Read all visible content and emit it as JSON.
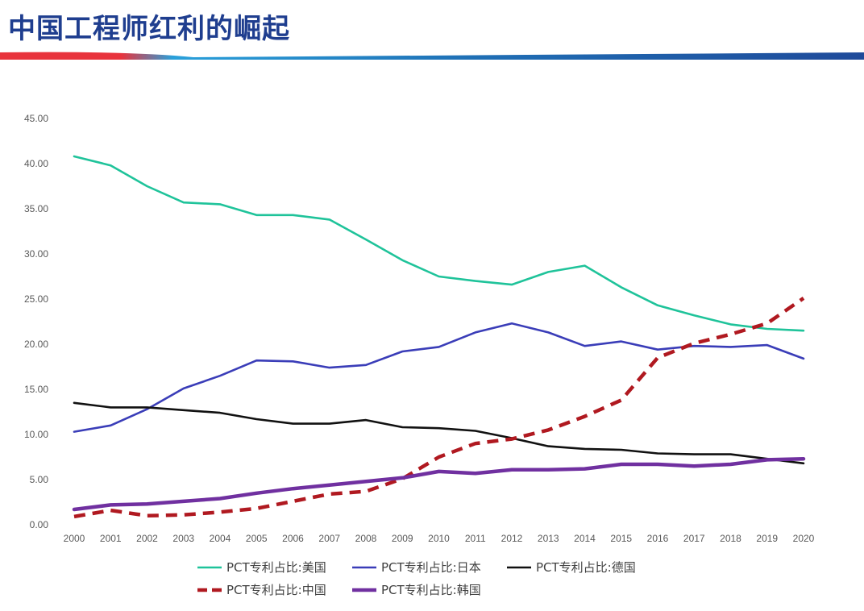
{
  "header": {
    "title": "中国工程师红利的崛起",
    "bar_colors": [
      "#E8333C",
      "#2AA0DA",
      "#1F4A9A"
    ],
    "title_color": "#1F3E8F"
  },
  "chart_data": {
    "type": "line",
    "title": "",
    "xlabel": "",
    "ylabel": "",
    "categories": [
      "2000",
      "2001",
      "2002",
      "2003",
      "2004",
      "2005",
      "2006",
      "2007",
      "2008",
      "2009",
      "2010",
      "2011",
      "2012",
      "2013",
      "2014",
      "2015",
      "2016",
      "2017",
      "2018",
      "2019",
      "2020"
    ],
    "ylim": [
      0,
      45
    ],
    "y_ticks": [
      "0.00",
      "5.00",
      "10.00",
      "15.00",
      "20.00",
      "25.00",
      "30.00",
      "35.00",
      "40.00",
      "45.00"
    ],
    "grid": false,
    "legend_position": "bottom",
    "series": [
      {
        "name": "PCT专利占比:美国",
        "color": "#1FC39A",
        "style": "solid",
        "width": "normal",
        "values": [
          40.8,
          39.8,
          37.5,
          35.7,
          35.5,
          34.3,
          34.3,
          33.8,
          31.6,
          29.3,
          27.5,
          27.0,
          26.6,
          28.0,
          28.7,
          26.3,
          24.3,
          23.2,
          22.2,
          21.7,
          21.5
        ]
      },
      {
        "name": "PCT专利占比:日本",
        "color": "#3A3DB8",
        "style": "solid",
        "width": "normal",
        "values": [
          10.3,
          11.0,
          12.8,
          15.1,
          16.5,
          18.2,
          18.1,
          17.4,
          17.7,
          19.2,
          19.7,
          21.3,
          22.3,
          21.3,
          19.8,
          20.3,
          19.4,
          19.8,
          19.7,
          19.9,
          18.4
        ]
      },
      {
        "name": "PCT专利占比:德国",
        "color": "#111111",
        "style": "solid",
        "width": "normal",
        "values": [
          13.5,
          13.0,
          13.0,
          12.7,
          12.4,
          11.7,
          11.2,
          11.2,
          11.6,
          10.8,
          10.7,
          10.4,
          9.6,
          8.7,
          8.4,
          8.3,
          7.9,
          7.8,
          7.8,
          7.3,
          6.8
        ]
      },
      {
        "name": "PCT专利占比:中国",
        "color": "#B01920",
        "style": "dashed",
        "width": "thick",
        "values": [
          0.9,
          1.6,
          1.0,
          1.1,
          1.4,
          1.8,
          2.6,
          3.4,
          3.7,
          5.1,
          7.5,
          9.0,
          9.5,
          10.5,
          12.0,
          13.8,
          18.5,
          20.1,
          21.1,
          22.3,
          25.1
        ]
      },
      {
        "name": "PCT专利占比:韩国",
        "color": "#7030A0",
        "style": "solid",
        "width": "thick",
        "values": [
          1.7,
          2.2,
          2.3,
          2.6,
          2.9,
          3.5,
          4.0,
          4.4,
          4.8,
          5.2,
          5.9,
          5.7,
          6.1,
          6.1,
          6.2,
          6.7,
          6.7,
          6.5,
          6.7,
          7.2,
          7.3
        ]
      }
    ]
  }
}
